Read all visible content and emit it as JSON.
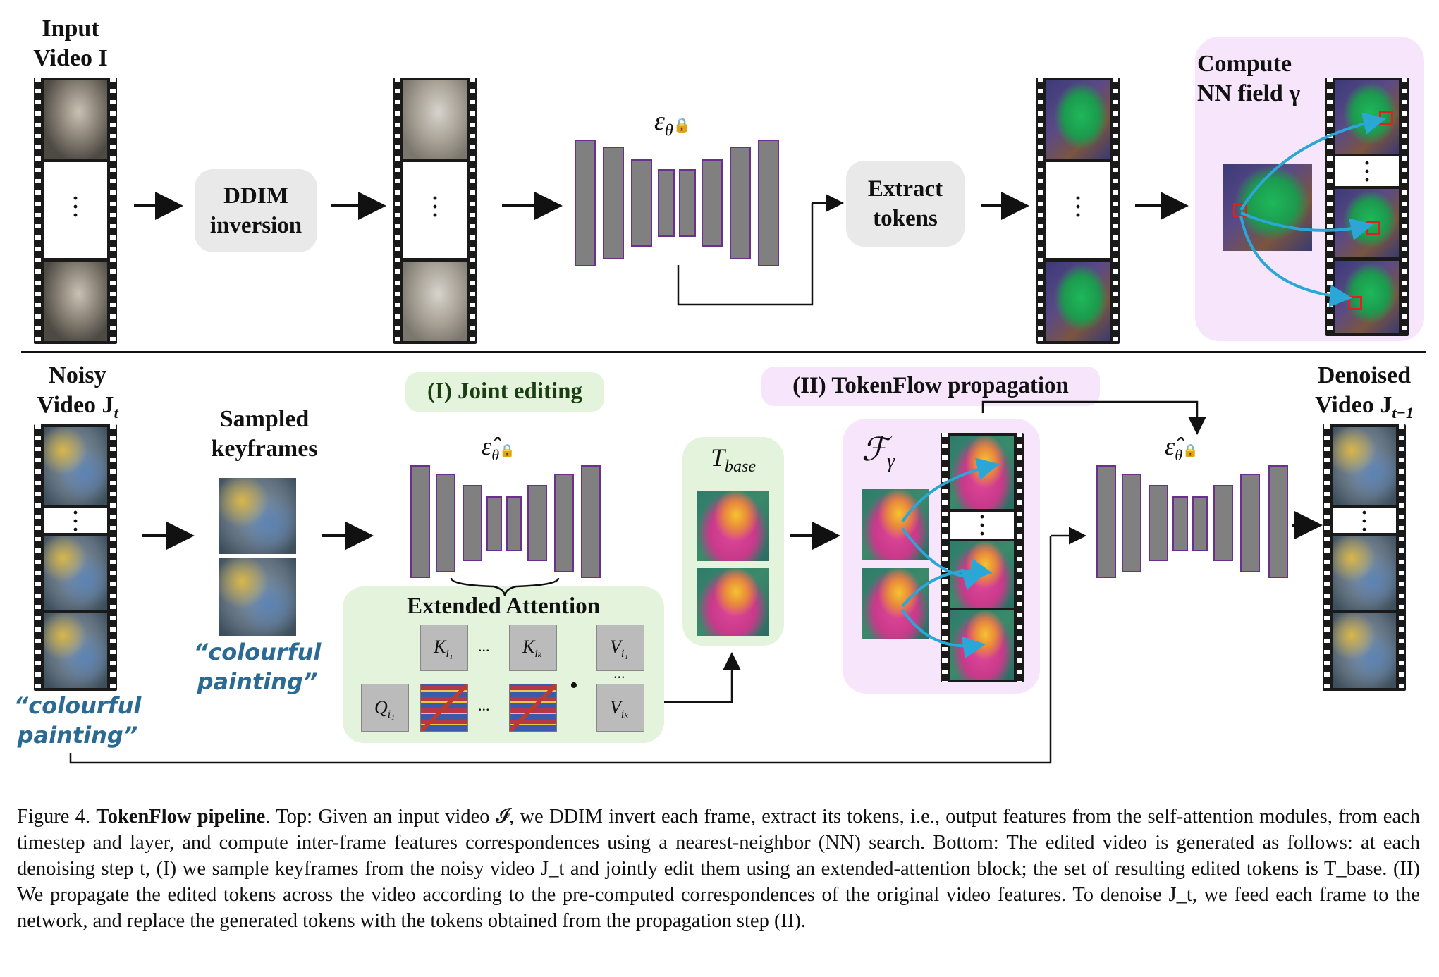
{
  "top": {
    "input_video_label": [
      "Input",
      "Video I"
    ],
    "ddim_box": [
      "DDIM",
      "inversion"
    ],
    "unet_label": "ε",
    "unet_sub": "θ",
    "extract_box": [
      "Extract",
      "tokens"
    ],
    "nn_field_label": [
      "Compute",
      "NN field γ"
    ]
  },
  "bottom": {
    "noisy_video_label": [
      "Noisy",
      "Video J",
      "t"
    ],
    "sampled_keyframes_label": [
      "Sampled",
      "keyframes"
    ],
    "prompt_text_1": [
      "“colourful",
      "painting”"
    ],
    "prompt_text_2": [
      "“colourful",
      "painting”"
    ],
    "joint_editing_tag": "(I) Joint editing",
    "tokenflow_tag": "(II) TokenFlow propagation",
    "unet_hat_label": "ε̂",
    "unet_sub": "θ",
    "extended_attention_label": "Extended Attention",
    "t_base_label": "T",
    "t_base_sub": "base",
    "f_gamma_label": "ℱ",
    "f_gamma_sub": "γ",
    "denoised_video_label": [
      "Denoised",
      "Video J",
      "t−1"
    ],
    "attention": {
      "k1": "K",
      "k1_sub": "i₁",
      "kk": "K",
      "kk_sub": "iₖ",
      "v1": "V",
      "v1_sub": "i₁",
      "vk": "V",
      "vk_sub": "iₖ",
      "q": "Q",
      "q_sub": "i₁",
      "ellipsis": "...",
      "dot": "•"
    }
  },
  "caption": {
    "prefix": "Figure 4. ",
    "title": "TokenFlow pipeline",
    "body": ". Top: Given an input video 𝓘, we DDIM invert each frame, extract its tokens, i.e., output features from the self-attention modules, from each timestep and layer, and compute inter-frame features correspondences using a nearest-neighbor (NN) search. Bottom: The edited video is generated as follows: at each denoising step t, (I) we sample keyframes from the noisy video J_t and jointly edit them using an extended-attention block; the set of resulting edited tokens is T_base. (II) We propagate the edited tokens across the video according to the pre-computed correspondences of the original video features. To denoise J_t, we feed each frame to the network, and replace the generated tokens with the tokens obtained from the propagation step (II)."
  },
  "colors": {
    "purple_panel": "#f7e6fb",
    "green_panel": "#e4f3dc",
    "unet_border": "#6b2f8e",
    "arrow_cyan": "#2aa7d6"
  }
}
